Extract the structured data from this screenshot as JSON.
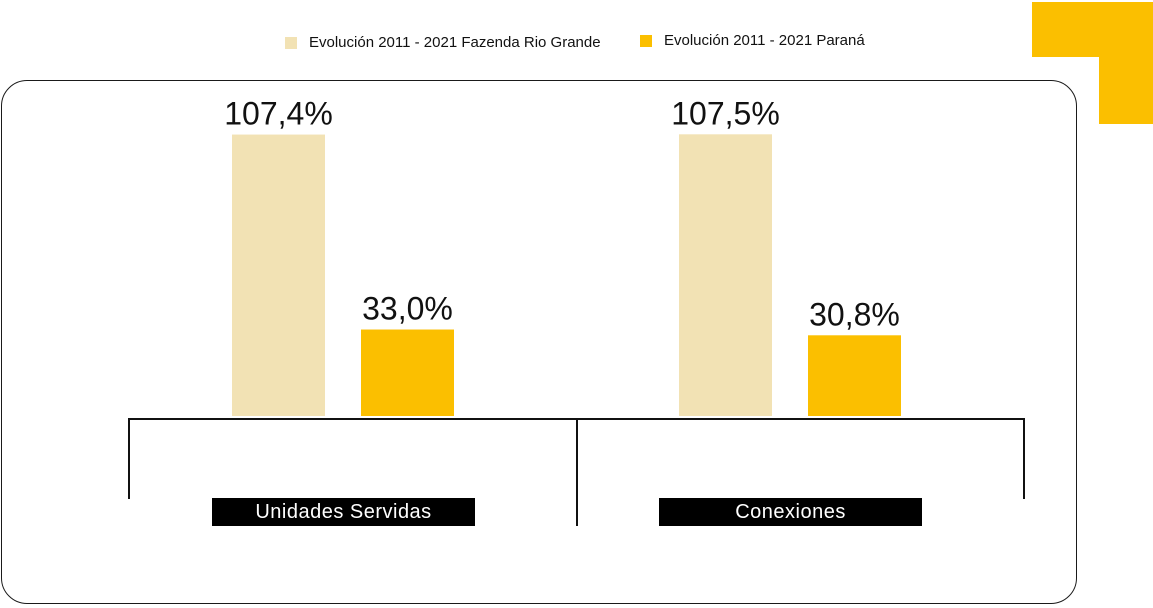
{
  "colors": {
    "series_1": "#f2e2b4",
    "series_2": "#fbbf00",
    "accent": "#fbbf00",
    "text": "#111111",
    "label_bg": "#000000",
    "label_text": "#ffffff"
  },
  "legend": {
    "items": [
      {
        "label": "Evolución 2011 - 2021 Fazenda Rio Grande"
      },
      {
        "label": "Evolución 2011 - 2021 Paraná"
      }
    ]
  },
  "chart_data": {
    "type": "bar",
    "categories": [
      "Unidades Servidas",
      "Conexiones"
    ],
    "series": [
      {
        "name": "Evolución 2011 - 2021 Fazenda Rio Grande",
        "values": [
          107.4,
          107.5
        ],
        "labels": [
          "107,4%",
          "107,5%"
        ]
      },
      {
        "name": "Evolución 2011 - 2021 Paraná",
        "values": [
          33.0,
          30.8
        ],
        "labels": [
          "33,0%",
          "30,8%"
        ]
      }
    ],
    "unit": "%",
    "ylim": [
      0,
      108
    ],
    "grid": false,
    "legend_position": "top"
  }
}
